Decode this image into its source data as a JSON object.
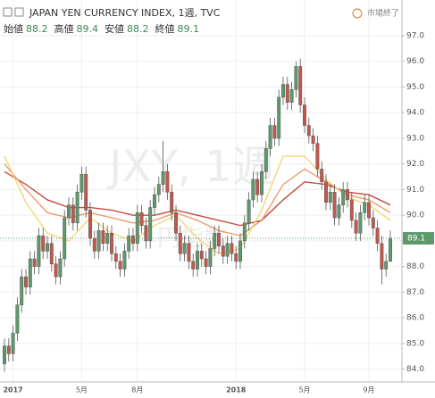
{
  "chart_data": {
    "type": "candlestick",
    "title": "JAPAN YEN CURRENCY INDEX, 1週, TVC",
    "status": "市場終了",
    "ohlc_legend": [
      {
        "label": "始値",
        "value": "88.2"
      },
      {
        "label": "高値",
        "value": "89.4"
      },
      {
        "label": "安値",
        "value": "88.2"
      },
      {
        "label": "終値",
        "value": "89.1"
      }
    ],
    "watermark": [
      "JXY, 1週",
      "円指数"
    ],
    "categories": [
      null,
      null,
      "2017",
      null,
      null,
      null,
      null,
      null,
      null,
      null,
      null,
      null,
      null,
      null,
      null,
      null,
      null,
      null,
      "5月",
      null,
      null,
      null,
      null,
      null,
      null,
      null,
      null,
      null,
      null,
      null,
      null,
      "8月",
      null,
      null,
      null,
      null,
      null,
      null,
      null,
      null,
      null,
      null,
      null,
      null,
      null,
      null,
      null,
      null,
      null,
      null,
      null,
      null,
      null,
      null,
      "2018",
      null,
      null,
      null,
      null,
      null,
      null,
      null,
      null,
      null,
      null,
      null,
      null,
      null,
      null,
      null,
      "5月",
      null,
      null,
      null,
      null,
      null,
      null,
      null,
      null,
      null,
      null,
      null,
      null,
      null,
      null,
      "9月",
      null,
      null,
      null,
      null,
      null
    ],
    "open": [
      84.2,
      84.9,
      84.6,
      85.4,
      86.5,
      87.6,
      87.2,
      88.3,
      88.0,
      89.2,
      88.6,
      88.9,
      88.1,
      87.6,
      88.3,
      89.9,
      90.4,
      89.7,
      90.9,
      91.6,
      90.2,
      89.1,
      88.6,
      89.4,
      88.9,
      89.3,
      88.5,
      88.2,
      87.9,
      88.6,
      89.2,
      88.9,
      90.1,
      89.6,
      89.0,
      90.3,
      90.8,
      91.2,
      91.7,
      90.9,
      90.1,
      89.3,
      88.5,
      88.9,
      88.2,
      87.9,
      88.6,
      88.3,
      88.0,
      88.7,
      89.3,
      88.8,
      88.4,
      88.9,
      88.5,
      88.2,
      89.0,
      89.7,
      90.6,
      91.4,
      90.8,
      91.7,
      92.6,
      93.5,
      93.0,
      94.6,
      95.1,
      94.4,
      94.9,
      95.8,
      94.3,
      93.5,
      93.1,
      92.8,
      91.8,
      91.3,
      90.5,
      90.9,
      89.9,
      90.4,
      91.0,
      90.6,
      89.8,
      89.3,
      90.1,
      90.5,
      89.9,
      89.5,
      88.9,
      87.9,
      88.2
    ],
    "high": [
      85.2,
      85.2,
      85.7,
      86.8,
      87.9,
      87.9,
      88.6,
      88.6,
      89.5,
      89.5,
      89.2,
      89.2,
      88.4,
      88.6,
      90.2,
      90.7,
      90.7,
      91.2,
      91.9,
      91.9,
      90.5,
      89.4,
      89.7,
      89.7,
      89.6,
      89.6,
      88.8,
      88.5,
      88.9,
      89.5,
      89.5,
      90.4,
      90.4,
      89.9,
      90.6,
      91.1,
      91.5,
      92.9,
      92.0,
      91.2,
      90.4,
      89.6,
      89.2,
      89.2,
      88.5,
      88.9,
      88.9,
      88.6,
      89.0,
      89.6,
      89.6,
      89.1,
      89.2,
      89.2,
      88.8,
      89.3,
      90.0,
      90.9,
      91.7,
      91.7,
      92.0,
      92.9,
      93.8,
      93.8,
      94.9,
      95.4,
      95.4,
      95.2,
      96.0,
      96.1,
      94.6,
      93.8,
      93.4,
      93.1,
      92.1,
      91.6,
      91.2,
      91.2,
      90.7,
      91.3,
      91.3,
      90.9,
      90.1,
      90.4,
      90.8,
      90.8,
      90.2,
      89.8,
      89.2,
      88.5,
      89.4
    ],
    "low": [
      83.9,
      84.3,
      84.3,
      85.1,
      86.2,
      86.9,
      86.9,
      87.7,
      87.7,
      88.3,
      88.3,
      87.8,
      87.3,
      87.3,
      88.0,
      89.6,
      89.4,
      89.4,
      90.6,
      89.9,
      88.8,
      88.3,
      88.3,
      88.6,
      88.6,
      88.2,
      87.9,
      87.6,
      87.6,
      88.3,
      88.6,
      88.6,
      89.3,
      88.7,
      88.7,
      90.0,
      90.5,
      90.9,
      90.6,
      89.8,
      89.0,
      88.2,
      88.2,
      87.9,
      87.6,
      87.6,
      88.0,
      87.7,
      87.7,
      88.4,
      88.5,
      88.1,
      88.1,
      88.2,
      87.9,
      87.9,
      88.7,
      89.4,
      90.3,
      90.5,
      90.5,
      91.4,
      92.3,
      92.7,
      92.7,
      94.3,
      94.1,
      94.1,
      94.6,
      94.0,
      93.2,
      92.8,
      92.5,
      91.5,
      91.0,
      90.2,
      90.2,
      89.6,
      89.6,
      90.1,
      90.3,
      89.5,
      89.0,
      89.0,
      89.8,
      89.6,
      89.2,
      88.6,
      87.3,
      87.6,
      88.2
    ],
    "close": [
      84.9,
      84.6,
      85.4,
      86.5,
      87.6,
      87.2,
      88.3,
      88.0,
      89.2,
      88.6,
      88.9,
      88.1,
      87.6,
      88.3,
      89.9,
      90.4,
      89.7,
      90.9,
      91.6,
      90.2,
      89.1,
      88.6,
      89.4,
      88.9,
      89.3,
      88.5,
      88.2,
      87.9,
      88.6,
      89.2,
      88.9,
      90.1,
      89.6,
      89.0,
      90.3,
      90.8,
      91.2,
      91.7,
      90.9,
      90.1,
      89.3,
      88.5,
      88.9,
      88.2,
      87.9,
      88.6,
      88.3,
      88.0,
      88.7,
      89.3,
      88.8,
      88.4,
      88.9,
      88.5,
      88.2,
      89.0,
      89.7,
      90.6,
      91.4,
      90.8,
      91.7,
      92.6,
      93.5,
      93.0,
      94.6,
      95.1,
      94.4,
      94.9,
      95.8,
      94.3,
      93.5,
      93.1,
      92.8,
      91.8,
      91.3,
      90.5,
      90.9,
      89.9,
      90.4,
      91.0,
      90.6,
      89.8,
      89.3,
      90.1,
      90.5,
      89.9,
      89.5,
      88.9,
      87.9,
      88.2,
      89.1
    ],
    "up_color": "#5d9a6b",
    "down_color": "#c4564c",
    "overlays": [
      {
        "color": "#c0392b",
        "x": [
          0,
          5,
          10,
          15,
          20,
          25,
          30,
          35,
          40,
          45,
          50,
          55,
          60,
          65,
          70,
          75,
          80,
          85,
          90
        ],
        "values": [
          91.7,
          91.2,
          90.6,
          90.3,
          90.3,
          90.2,
          90.0,
          90.0,
          90.2,
          90.0,
          89.8,
          89.6,
          89.8,
          90.6,
          91.3,
          91.2,
          90.9,
          90.8,
          90.4
        ]
      },
      {
        "color": "#ec8f5a",
        "x": [
          0,
          5,
          10,
          15,
          20,
          25,
          30,
          35,
          40,
          45,
          50,
          55,
          60,
          65,
          70,
          75,
          80,
          85,
          90
        ],
        "values": [
          92.0,
          91.0,
          90.1,
          89.9,
          90.1,
          89.9,
          89.7,
          89.8,
          90.1,
          89.8,
          89.4,
          89.2,
          89.8,
          91.2,
          91.8,
          91.3,
          90.8,
          90.6,
          90.1
        ]
      },
      {
        "color": "#f3d16a",
        "x": [
          0,
          5,
          10,
          15,
          20,
          25,
          30,
          35,
          40,
          45,
          50,
          55,
          60,
          65,
          70,
          75,
          80,
          85,
          90
        ],
        "values": [
          92.3,
          90.5,
          89.3,
          89.0,
          89.9,
          89.3,
          89.0,
          89.6,
          90.0,
          89.1,
          88.5,
          88.7,
          90.2,
          92.3,
          92.3,
          91.4,
          90.7,
          90.4,
          89.8
        ]
      }
    ],
    "last_price": 89.1,
    "ylim": [
      83.5,
      97.8
    ],
    "yticks": [
      {
        "value": 84,
        "label": "84.0"
      },
      {
        "value": 85,
        "label": "85.0"
      },
      {
        "value": 86,
        "label": "86.0"
      },
      {
        "value": 87,
        "label": "87.0"
      },
      {
        "value": 88,
        "label": "88.0"
      },
      {
        "value": 89,
        "label": "89.0"
      },
      {
        "value": 90,
        "label": "90.0"
      },
      {
        "value": 91,
        "label": "91.0"
      },
      {
        "value": 92,
        "label": "92.0"
      },
      {
        "value": 93,
        "label": "93.0"
      },
      {
        "value": 94,
        "label": "94.0"
      },
      {
        "value": 95,
        "label": "95.0"
      },
      {
        "value": 96,
        "label": "96.0"
      },
      {
        "value": 97,
        "label": "97.0"
      }
    ],
    "grid": true
  }
}
